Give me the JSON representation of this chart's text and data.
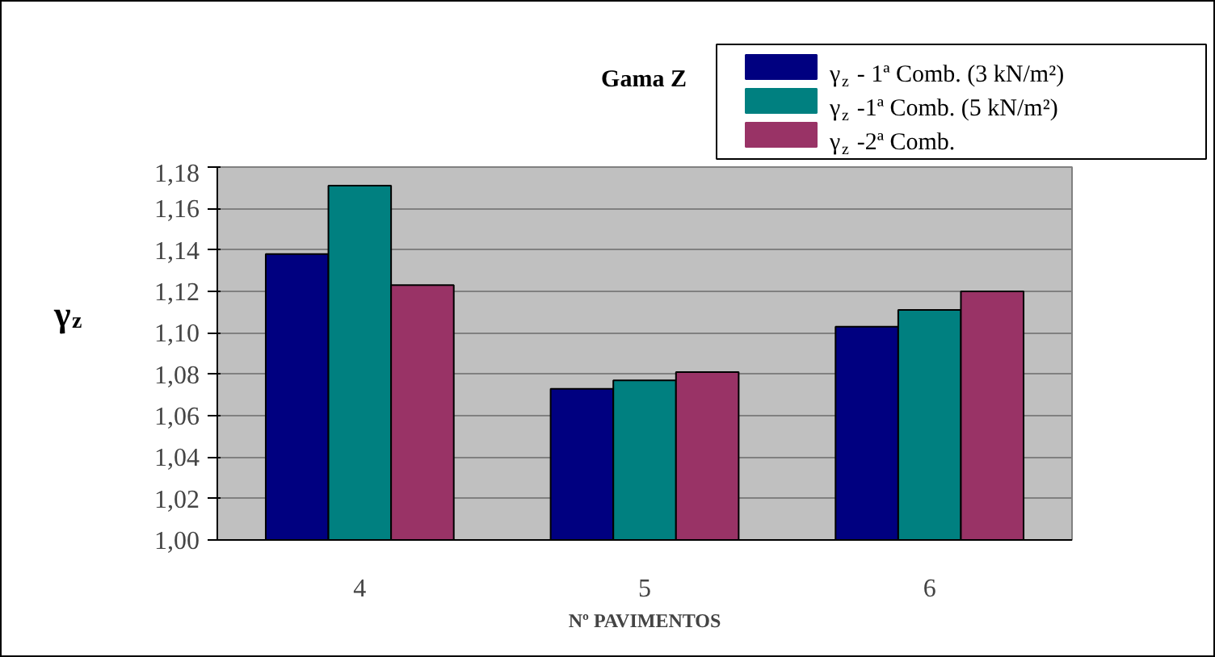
{
  "chart_data": {
    "type": "bar",
    "title": "Gama Z",
    "xlabel": "Nº PAVIMENTOS",
    "ylabel": "γ$_{z}$",
    "categories": [
      "4",
      "5",
      "6"
    ],
    "series": [
      {
        "name": "γ$_{z}$ - 1ª Comb. (3 kN/m²)",
        "color": "#000080",
        "values": [
          1.138,
          1.073,
          1.103
        ]
      },
      {
        "name": "γ$_{z}$ -1ª Comb. (5 kN/m²)",
        "color": "#008080",
        "values": [
          1.171,
          1.077,
          1.111
        ]
      },
      {
        "name": "γ$_{z}$ -2ª Comb.",
        "color": "#993366",
        "values": [
          1.123,
          1.081,
          1.12
        ]
      }
    ],
    "ylim": [
      1.0,
      1.18
    ],
    "yticks": [
      {
        "value": 1.0,
        "label": "1,00"
      },
      {
        "value": 1.02,
        "label": "1,02"
      },
      {
        "value": 1.04,
        "label": "1,04"
      },
      {
        "value": 1.06,
        "label": "1,06"
      },
      {
        "value": 1.08,
        "label": "1,08"
      },
      {
        "value": 1.1,
        "label": "1,10"
      },
      {
        "value": 1.12,
        "label": "1,12"
      },
      {
        "value": 1.14,
        "label": "1,14"
      },
      {
        "value": 1.16,
        "label": "1,16"
      },
      {
        "value": 1.18,
        "label": "1,18"
      }
    ],
    "grid": "y",
    "legend": "top right"
  }
}
